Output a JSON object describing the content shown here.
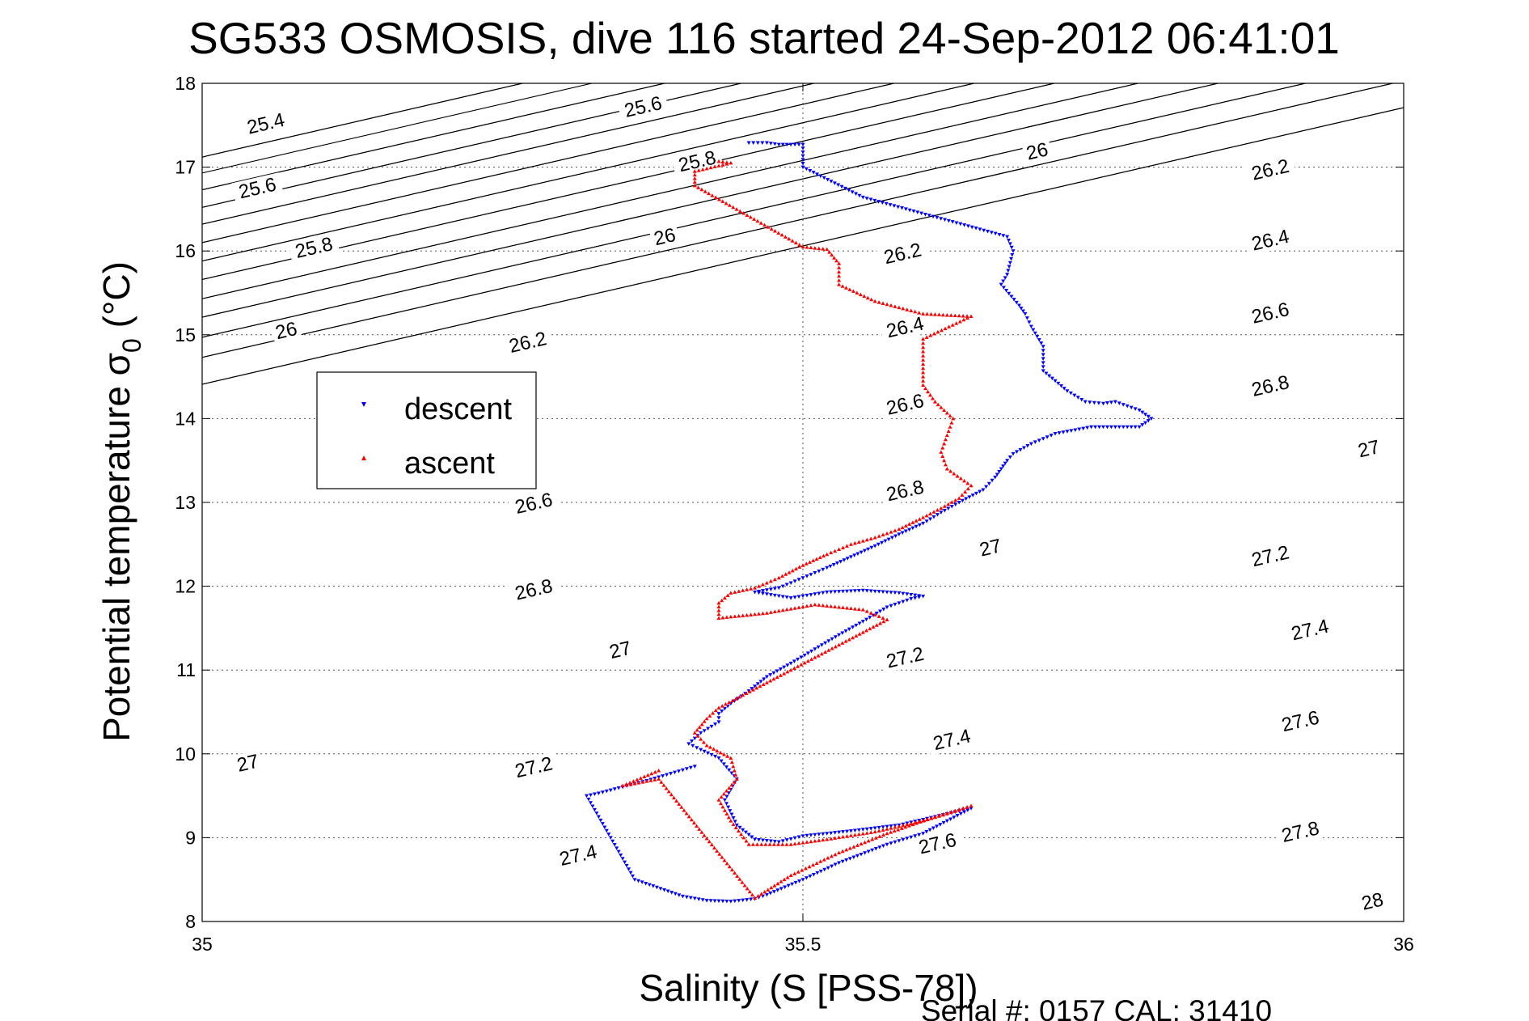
{
  "chart_data": {
    "type": "scatter",
    "title": "SG533 OSMOSIS, dive 116 started 24-Sep-2012 06:41:01",
    "xlabel": "Salinity (S [PSS-78])",
    "ylabel_main": "Potential temperature ",
    "ylabel_sigma": "σ",
    "ylabel_sub": "0",
    "ylabel_unit": " (°C)",
    "footer": "Serial #: 0157  CAL: 31410",
    "xlim": [
      35,
      36
    ],
    "ylim": [
      8,
      18
    ],
    "xticks": [
      "35",
      "35.5",
      "36"
    ],
    "xtick_values": [
      35,
      35.5,
      36
    ],
    "yticks": [
      "8",
      "9",
      "10",
      "11",
      "12",
      "13",
      "14",
      "15",
      "16",
      "17",
      "18"
    ],
    "ytick_values": [
      8,
      9,
      10,
      11,
      12,
      13,
      14,
      15,
      16,
      17,
      18
    ],
    "grid": true,
    "legend_position": "upper-left",
    "contours": {
      "slope": 3.3,
      "levels": [
        25.4,
        25.6,
        25.8,
        26,
        26.2,
        26.4,
        26.6,
        26.8,
        27,
        27.2,
        27.4,
        27.6,
        27.8,
        28
      ],
      "intercepts": [
        14.41,
        14.41,
        14.73,
        14.73,
        14.97,
        14.97,
        15.21,
        15.21,
        15.43,
        15.43,
        15.66,
        15.66,
        15.88,
        15.88,
        16.1,
        16.1,
        16.32,
        16.32,
        16.52,
        16.52,
        16.73,
        16.73,
        16.93,
        17.12,
        17.12
      ],
      "labels": [
        {
          "text": "25.4",
          "s": 35.053,
          "t": 17.52
        },
        {
          "text": "25.6",
          "s": 35.367,
          "t": 17.72
        },
        {
          "text": "25.6",
          "s": 35.046,
          "t": 16.75
        },
        {
          "text": "25.8",
          "s": 35.412,
          "t": 17.07
        },
        {
          "text": "25.8",
          "s": 35.093,
          "t": 16.04
        },
        {
          "text": "26",
          "s": 35.695,
          "t": 17.19
        },
        {
          "text": "26",
          "s": 35.385,
          "t": 16.17
        },
        {
          "text": "26",
          "s": 35.07,
          "t": 15.05
        },
        {
          "text": "26.2",
          "s": 35.889,
          "t": 16.97
        },
        {
          "text": "26.2",
          "s": 35.583,
          "t": 15.97
        },
        {
          "text": "26.2",
          "s": 35.271,
          "t": 14.91
        },
        {
          "text": "26.4",
          "s": 35.889,
          "t": 16.13
        },
        {
          "text": "26.4",
          "s": 35.585,
          "t": 15.09
        },
        {
          "text": "26.6",
          "s": 35.889,
          "t": 15.26
        },
        {
          "text": "26.6",
          "s": 35.585,
          "t": 14.17
        },
        {
          "text": "26.6",
          "s": 35.276,
          "t": 12.99
        },
        {
          "text": "26.8",
          "s": 35.889,
          "t": 14.39
        },
        {
          "text": "26.8",
          "s": 35.585,
          "t": 13.14
        },
        {
          "text": "26.8",
          "s": 35.276,
          "t": 11.96
        },
        {
          "text": "27",
          "s": 35.971,
          "t": 13.64
        },
        {
          "text": "27",
          "s": 35.656,
          "t": 12.46
        },
        {
          "text": "27",
          "s": 35.348,
          "t": 11.24
        },
        {
          "text": "27",
          "s": 35.038,
          "t": 9.89
        },
        {
          "text": "27.2",
          "s": 35.889,
          "t": 12.36
        },
        {
          "text": "27.2",
          "s": 35.585,
          "t": 11.15
        },
        {
          "text": "27.2",
          "s": 35.276,
          "t": 9.84
        },
        {
          "text": "27.4",
          "s": 35.922,
          "t": 11.48
        },
        {
          "text": "27.4",
          "s": 35.624,
          "t": 10.17
        },
        {
          "text": "27.4",
          "s": 35.313,
          "t": 8.79
        },
        {
          "text": "27.6",
          "s": 35.914,
          "t": 10.39
        },
        {
          "text": "27.6",
          "s": 35.612,
          "t": 8.93
        },
        {
          "text": "27.8",
          "s": 35.914,
          "t": 9.07
        },
        {
          "text": "28",
          "s": 35.974,
          "t": 8.24
        }
      ]
    },
    "legend": [
      {
        "label": "descent",
        "color": "#0000ff",
        "marker": "triangle-down"
      },
      {
        "label": "ascent",
        "color": "#ff0000",
        "marker": "triangle-up"
      }
    ],
    "series": [
      {
        "name": "descent",
        "color": "#0000ff",
        "marker": "triangle-down",
        "path": [
          [
            35.455,
            17.29
          ],
          [
            35.47,
            17.29
          ],
          [
            35.48,
            17.27
          ],
          [
            35.5,
            17.27
          ],
          [
            35.5,
            17.0
          ],
          [
            35.55,
            16.64
          ],
          [
            35.67,
            16.17
          ],
          [
            35.675,
            16.0
          ],
          [
            35.67,
            15.72
          ],
          [
            35.665,
            15.6
          ],
          [
            35.68,
            15.35
          ],
          [
            35.685,
            15.25
          ],
          [
            35.69,
            15.1
          ],
          [
            35.7,
            14.86
          ],
          [
            35.7,
            14.57
          ],
          [
            35.72,
            14.33
          ],
          [
            35.735,
            14.2
          ],
          [
            35.75,
            14.18
          ],
          [
            35.76,
            14.2
          ],
          [
            35.78,
            14.1
          ],
          [
            35.79,
            14.0
          ],
          [
            35.78,
            13.9
          ],
          [
            35.74,
            13.9
          ],
          [
            35.71,
            13.82
          ],
          [
            35.69,
            13.7
          ],
          [
            35.675,
            13.58
          ],
          [
            35.67,
            13.5
          ],
          [
            35.665,
            13.4
          ],
          [
            35.66,
            13.3
          ],
          [
            35.65,
            13.15
          ],
          [
            35.63,
            13.0
          ],
          [
            35.615,
            12.88
          ],
          [
            35.6,
            12.75
          ],
          [
            35.58,
            12.62
          ],
          [
            35.56,
            12.48
          ],
          [
            35.54,
            12.35
          ],
          [
            35.52,
            12.22
          ],
          [
            35.5,
            12.1
          ],
          [
            35.48,
            11.98
          ],
          [
            35.46,
            11.93
          ],
          [
            35.49,
            11.86
          ],
          [
            35.52,
            11.93
          ],
          [
            35.55,
            11.95
          ],
          [
            35.58,
            11.92
          ],
          [
            35.6,
            11.88
          ],
          [
            35.59,
            11.85
          ],
          [
            35.57,
            11.75
          ],
          [
            35.55,
            11.58
          ],
          [
            35.53,
            11.42
          ],
          [
            35.51,
            11.25
          ],
          [
            35.49,
            11.08
          ],
          [
            35.47,
            10.92
          ],
          [
            35.455,
            10.75
          ],
          [
            35.44,
            10.6
          ],
          [
            35.43,
            10.48
          ],
          [
            35.43,
            10.38
          ],
          [
            35.415,
            10.25
          ],
          [
            35.405,
            10.12
          ],
          [
            35.415,
            10.05
          ],
          [
            35.43,
            9.95
          ],
          [
            35.445,
            9.7
          ],
          [
            35.435,
            9.45
          ],
          [
            35.445,
            9.15
          ],
          [
            35.46,
            8.98
          ],
          [
            35.48,
            8.95
          ],
          [
            35.5,
            9.02
          ],
          [
            35.54,
            9.08
          ],
          [
            35.58,
            9.15
          ],
          [
            35.61,
            9.25
          ],
          [
            35.63,
            9.32
          ],
          [
            35.64,
            9.35
          ],
          [
            35.62,
            9.2
          ],
          [
            35.6,
            9.05
          ],
          [
            35.57,
            8.92
          ],
          [
            35.53,
            8.7
          ],
          [
            35.5,
            8.5
          ],
          [
            35.47,
            8.32
          ],
          [
            35.46,
            8.27
          ],
          [
            35.44,
            8.24
          ],
          [
            35.42,
            8.25
          ],
          [
            35.4,
            8.3
          ],
          [
            35.36,
            8.5
          ],
          [
            35.32,
            9.5
          ],
          [
            35.33,
            9.53
          ],
          [
            35.37,
            9.68
          ],
          [
            35.41,
            9.85
          ]
        ]
      },
      {
        "name": "ascent",
        "color": "#ff0000",
        "marker": "triangle-up",
        "path": [
          [
            35.43,
            17.07
          ],
          [
            35.44,
            17.05
          ],
          [
            35.41,
            16.95
          ],
          [
            35.41,
            16.78
          ],
          [
            35.5,
            16.05
          ],
          [
            35.52,
            16.02
          ],
          [
            35.53,
            15.85
          ],
          [
            35.53,
            15.6
          ],
          [
            35.56,
            15.4
          ],
          [
            35.6,
            15.25
          ],
          [
            35.64,
            15.22
          ],
          [
            35.6,
            14.95
          ],
          [
            35.6,
            14.65
          ],
          [
            35.6,
            14.4
          ],
          [
            35.61,
            14.2
          ],
          [
            35.625,
            14.0
          ],
          [
            35.62,
            13.8
          ],
          [
            35.615,
            13.6
          ],
          [
            35.62,
            13.4
          ],
          [
            35.64,
            13.2
          ],
          [
            35.63,
            13.05
          ],
          [
            35.615,
            12.93
          ],
          [
            35.6,
            12.82
          ],
          [
            35.58,
            12.68
          ],
          [
            35.56,
            12.58
          ],
          [
            35.54,
            12.5
          ],
          [
            35.52,
            12.38
          ],
          [
            35.5,
            12.25
          ],
          [
            35.48,
            12.1
          ],
          [
            35.46,
            11.98
          ],
          [
            35.44,
            11.92
          ],
          [
            35.43,
            11.8
          ],
          [
            35.43,
            11.62
          ],
          [
            35.47,
            11.68
          ],
          [
            35.51,
            11.78
          ],
          [
            35.55,
            11.72
          ],
          [
            35.57,
            11.6
          ],
          [
            35.55,
            11.45
          ],
          [
            35.53,
            11.3
          ],
          [
            35.51,
            11.15
          ],
          [
            35.49,
            11.0
          ],
          [
            35.47,
            10.85
          ],
          [
            35.45,
            10.7
          ],
          [
            35.43,
            10.55
          ],
          [
            35.42,
            10.42
          ],
          [
            35.41,
            10.25
          ],
          [
            35.42,
            10.1
          ],
          [
            35.44,
            9.95
          ],
          [
            35.445,
            9.7
          ],
          [
            35.43,
            9.45
          ],
          [
            35.44,
            9.2
          ],
          [
            35.455,
            8.92
          ],
          [
            35.49,
            8.92
          ],
          [
            35.52,
            8.98
          ],
          [
            35.56,
            9.07
          ],
          [
            35.6,
            9.2
          ],
          [
            35.63,
            9.33
          ],
          [
            35.64,
            9.38
          ],
          [
            35.61,
            9.25
          ],
          [
            35.57,
            9.05
          ],
          [
            35.53,
            8.82
          ],
          [
            35.49,
            8.55
          ],
          [
            35.46,
            8.28
          ],
          [
            35.38,
            9.7
          ],
          [
            35.35,
            9.62
          ],
          [
            35.38,
            9.8
          ]
        ]
      }
    ]
  }
}
